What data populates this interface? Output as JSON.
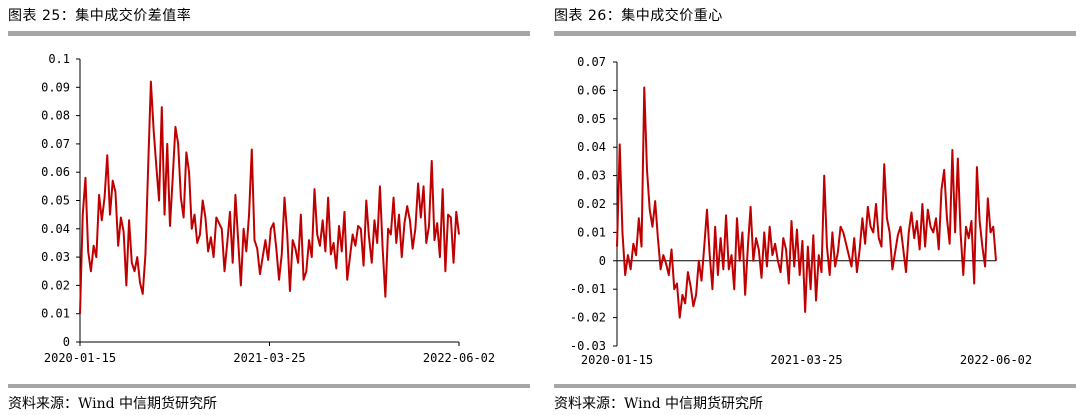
{
  "colors": {
    "series": "#c00000",
    "axis": "#000000",
    "rule": "#a6a6a6"
  },
  "panels": [
    {
      "title": "图表 25：集中成交价差值率",
      "source": "资料来源：Wind 中信期货研究所"
    },
    {
      "title": "图表 26：集中成交价重心",
      "source": "资料来源：Wind 中信期货研究所"
    }
  ],
  "chart_data": [
    {
      "type": "line",
      "title": "集中成交价差值率",
      "xlabel": "",
      "ylabel": "",
      "ylim": [
        0,
        0.1
      ],
      "yticks": [
        "0",
        "0.01",
        "0.02",
        "0.03",
        "0.04",
        "0.05",
        "0.06",
        "0.07",
        "0.08",
        "0.09",
        "0.1"
      ],
      "xticks": [
        "2020-01-15",
        "2021-03-25",
        "2022-06-02"
      ],
      "grid": false,
      "series": [
        {
          "color": "#c00000",
          "x_range": [
            "2020-01-15",
            "2022-06-02"
          ],
          "values": [
            0.01,
            0.045,
            0.058,
            0.032,
            0.025,
            0.034,
            0.03,
            0.052,
            0.043,
            0.051,
            0.066,
            0.045,
            0.057,
            0.053,
            0.034,
            0.044,
            0.039,
            0.02,
            0.043,
            0.028,
            0.025,
            0.03,
            0.021,
            0.017,
            0.031,
            0.062,
            0.092,
            0.075,
            0.062,
            0.05,
            0.083,
            0.045,
            0.07,
            0.041,
            0.058,
            0.076,
            0.07,
            0.051,
            0.044,
            0.067,
            0.06,
            0.04,
            0.045,
            0.035,
            0.038,
            0.05,
            0.044,
            0.032,
            0.037,
            0.03,
            0.044,
            0.042,
            0.04,
            0.025,
            0.035,
            0.046,
            0.028,
            0.052,
            0.036,
            0.02,
            0.04,
            0.032,
            0.045,
            0.068,
            0.036,
            0.033,
            0.024,
            0.03,
            0.036,
            0.029,
            0.04,
            0.042,
            0.033,
            0.022,
            0.031,
            0.051,
            0.038,
            0.018,
            0.036,
            0.033,
            0.028,
            0.045,
            0.022,
            0.025,
            0.036,
            0.03,
            0.054,
            0.038,
            0.034,
            0.043,
            0.032,
            0.051,
            0.031,
            0.035,
            0.026,
            0.041,
            0.032,
            0.046,
            0.022,
            0.03,
            0.038,
            0.034,
            0.041,
            0.04,
            0.027,
            0.05,
            0.037,
            0.028,
            0.043,
            0.035,
            0.055,
            0.033,
            0.016,
            0.04,
            0.038,
            0.051,
            0.035,
            0.045,
            0.03,
            0.042,
            0.048,
            0.043,
            0.033,
            0.04,
            0.056,
            0.044,
            0.055,
            0.035,
            0.041,
            0.064,
            0.036,
            0.042,
            0.03,
            0.054,
            0.025,
            0.045,
            0.044,
            0.028,
            0.046,
            0.038
          ]
        }
      ]
    },
    {
      "type": "line",
      "title": "集中成交价重心",
      "xlabel": "",
      "ylabel": "",
      "ylim": [
        -0.03,
        0.07
      ],
      "yticks": [
        "-0.03",
        "-0.02",
        "-0.01",
        "0",
        "0.01",
        "0.02",
        "0.03",
        "0.04",
        "0.05",
        "0.06",
        "0.07"
      ],
      "xticks": [
        "2020-01-15",
        "2021-03-25",
        "2022-06-02"
      ],
      "grid": false,
      "zero_line": true,
      "series": [
        {
          "color": "#c00000",
          "x_range": [
            "2020-01-15",
            "2022-06-02"
          ],
          "values": [
            0.005,
            0.041,
            0.01,
            -0.005,
            0.002,
            -0.003,
            0.006,
            0.002,
            0.015,
            0.005,
            0.061,
            0.032,
            0.018,
            0.012,
            0.021,
            0.008,
            -0.003,
            0.002,
            -0.001,
            -0.005,
            0.004,
            -0.01,
            -0.008,
            -0.02,
            -0.012,
            -0.015,
            -0.004,
            -0.009,
            -0.016,
            -0.012,
            0.0,
            -0.007,
            0.005,
            0.018,
            0.002,
            -0.01,
            0.012,
            -0.005,
            0.008,
            -0.003,
            0.016,
            -0.003,
            0.002,
            -0.01,
            0.015,
            0.0,
            0.01,
            -0.012,
            0.005,
            0.019,
            0.0,
            0.008,
            0.004,
            -0.006,
            0.01,
            -0.002,
            0.012,
            0.002,
            0.006,
            0.0,
            -0.004,
            0.008,
            0.004,
            -0.008,
            0.014,
            -0.002,
            0.011,
            -0.005,
            0.007,
            -0.018,
            0.005,
            -0.01,
            0.009,
            -0.014,
            0.002,
            -0.004,
            0.03,
            0.005,
            -0.005,
            0.01,
            -0.002,
            0.003,
            0.012,
            0.01,
            0.006,
            0.002,
            -0.002,
            0.008,
            -0.004,
            0.004,
            0.015,
            0.006,
            0.019,
            0.012,
            0.01,
            0.02,
            0.008,
            0.005,
            0.034,
            0.015,
            0.01,
            -0.003,
            0.003,
            0.009,
            0.012,
            0.004,
            -0.004,
            0.01,
            0.017,
            0.008,
            0.014,
            0.004,
            0.02,
            0.005,
            0.018,
            0.012,
            0.01,
            0.015,
            0.004,
            0.025,
            0.032,
            0.015,
            0.006,
            0.039,
            0.01,
            0.036,
            0.01,
            -0.005,
            0.012,
            0.008,
            0.014,
            -0.008,
            0.033,
            0.014,
            0.005,
            -0.002,
            0.022,
            0.01,
            0.012,
            0.0
          ]
        }
      ]
    }
  ]
}
